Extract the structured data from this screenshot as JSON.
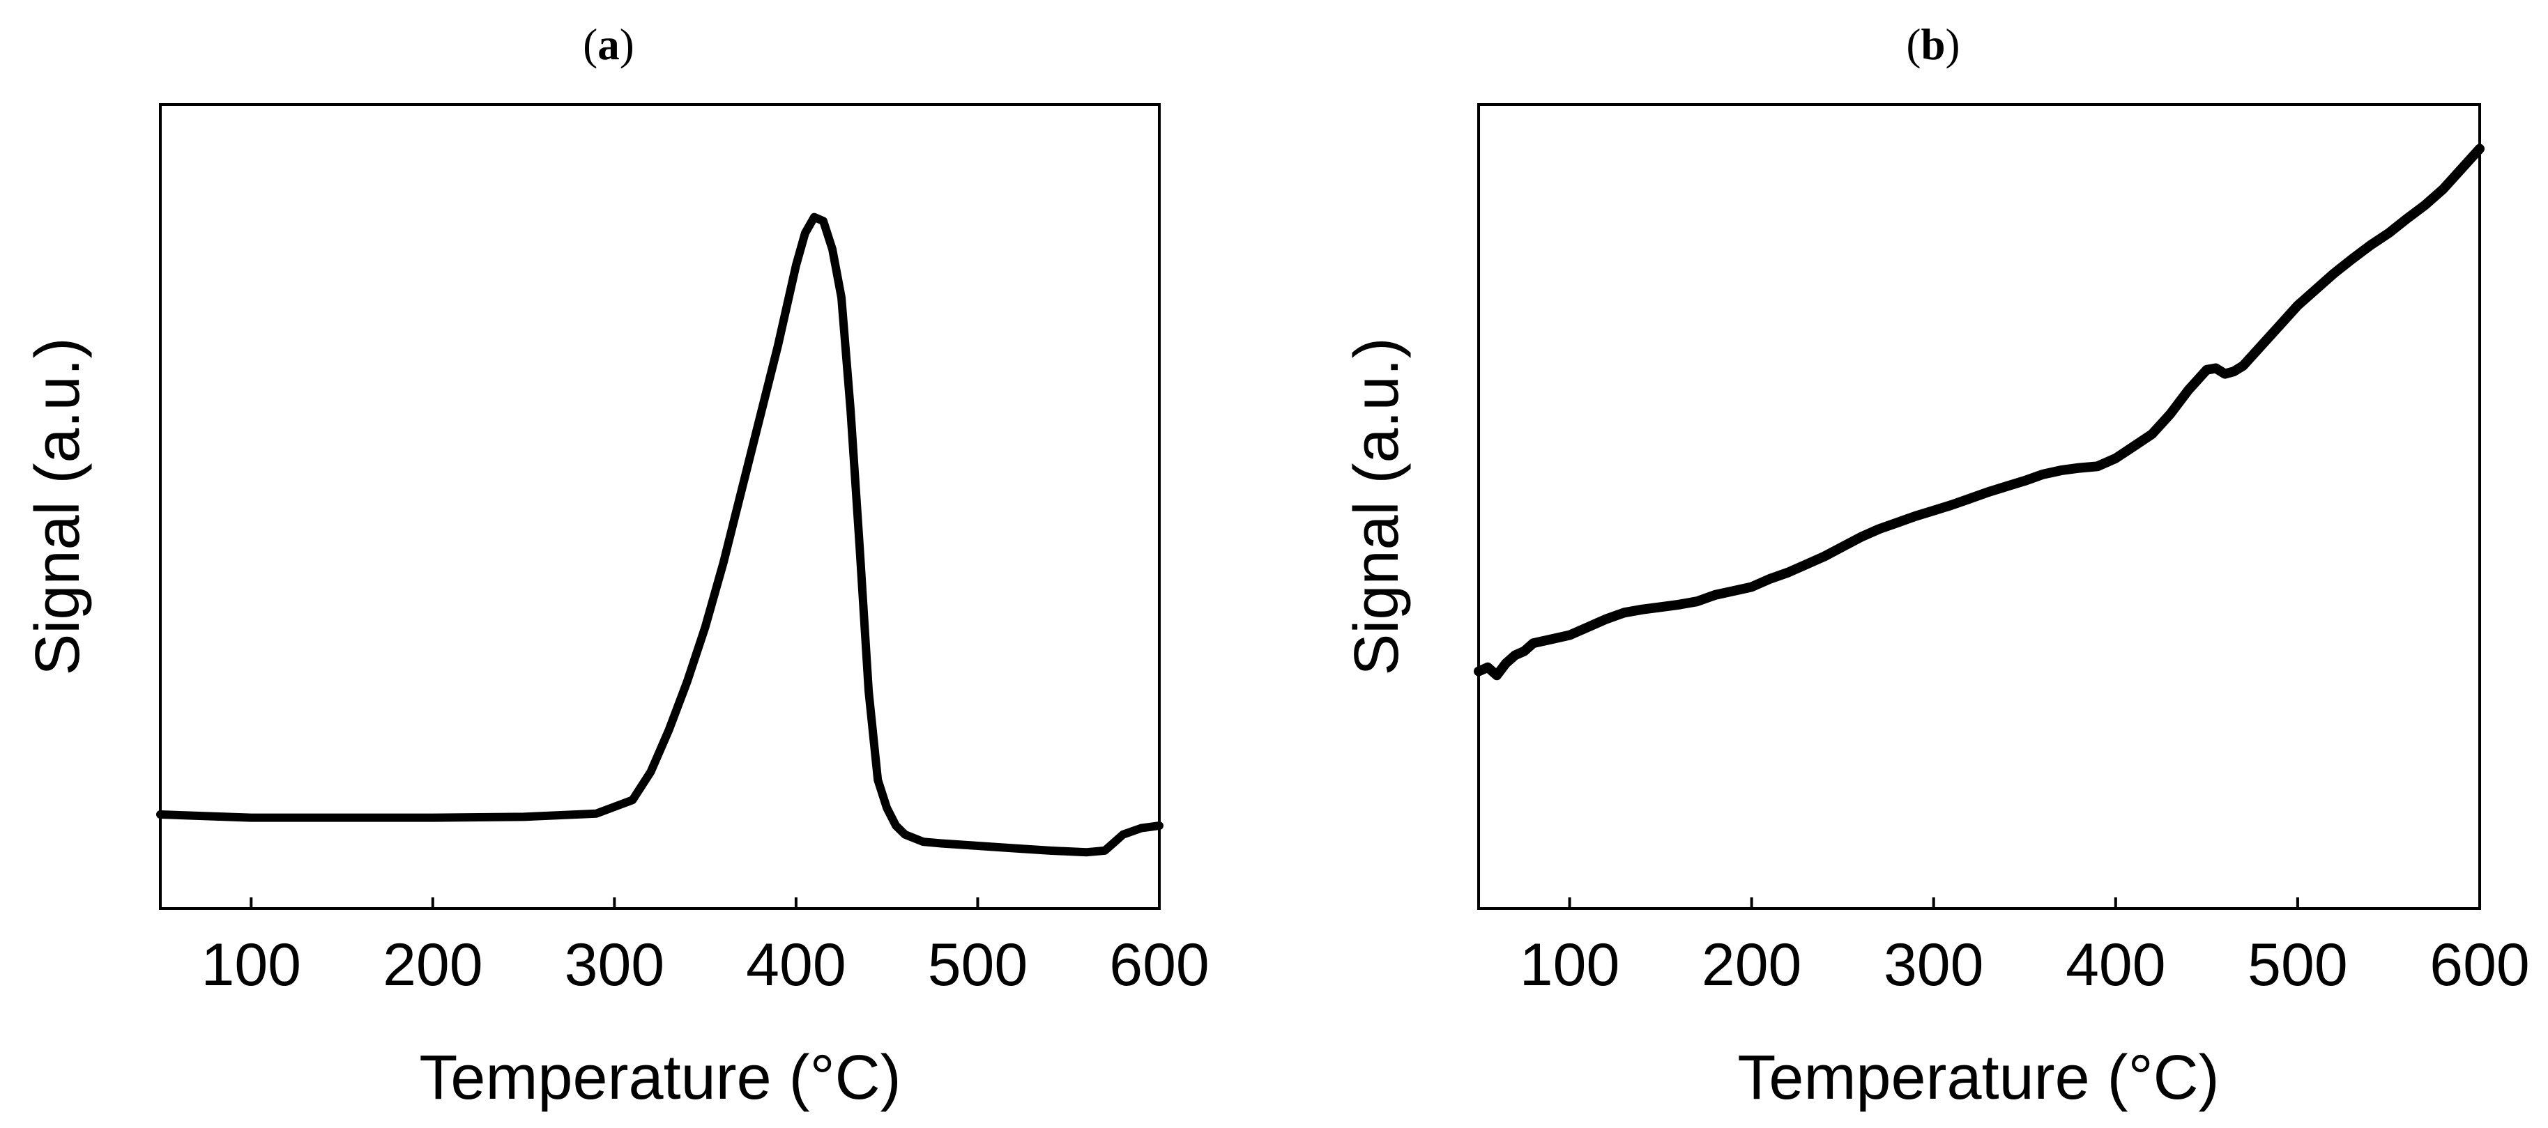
{
  "chart_data": [
    {
      "type": "line",
      "panel_label": "a",
      "title": "",
      "xlabel": "Temperature (°C)",
      "ylabel": "Signal (a.u.)",
      "xlim": [
        50,
        600
      ],
      "ylim": [
        0,
        1
      ],
      "xticks": [
        100,
        200,
        300,
        400,
        500,
        600
      ],
      "yticks_labeled": false,
      "grid": false,
      "legend": "none",
      "color": "#000000",
      "series": [
        {
          "x": [
            50,
            100,
            150,
            200,
            250,
            290,
            310,
            320,
            330,
            340,
            350,
            360,
            370,
            380,
            390,
            400,
            405,
            410,
            415,
            420,
            425,
            430,
            435,
            440,
            445,
            450,
            455,
            460,
            470,
            480,
            500,
            520,
            540,
            560,
            570,
            575,
            580,
            590,
            600
          ],
          "y": [
            0.117,
            0.113,
            0.113,
            0.113,
            0.114,
            0.118,
            0.135,
            0.17,
            0.222,
            0.282,
            0.35,
            0.43,
            0.52,
            0.61,
            0.7,
            0.8,
            0.84,
            0.86,
            0.855,
            0.82,
            0.76,
            0.62,
            0.45,
            0.27,
            0.16,
            0.125,
            0.103,
            0.092,
            0.083,
            0.081,
            0.078,
            0.075,
            0.072,
            0.07,
            0.072,
            0.082,
            0.092,
            0.1,
            0.103
          ]
        }
      ]
    },
    {
      "type": "line",
      "panel_label": "b",
      "title": "",
      "xlabel": "Temperature (°C)",
      "ylabel": "Signal (a.u.)",
      "xlim": [
        50,
        600
      ],
      "ylim": [
        0,
        1
      ],
      "xticks": [
        100,
        200,
        300,
        400,
        500,
        600
      ],
      "yticks_labeled": false,
      "grid": false,
      "legend": "none",
      "color": "#000000",
      "series": [
        {
          "x": [
            50,
            55,
            60,
            65,
            70,
            75,
            80,
            90,
            100,
            110,
            120,
            130,
            140,
            150,
            160,
            170,
            180,
            190,
            200,
            210,
            220,
            230,
            240,
            250,
            260,
            270,
            280,
            290,
            300,
            310,
            320,
            330,
            340,
            350,
            360,
            370,
            380,
            390,
            400,
            410,
            420,
            430,
            440,
            450,
            455,
            460,
            465,
            470,
            480,
            490,
            500,
            510,
            520,
            530,
            540,
            550,
            560,
            570,
            580,
            590,
            600
          ],
          "y": [
            0.295,
            0.3,
            0.29,
            0.305,
            0.315,
            0.32,
            0.33,
            0.335,
            0.34,
            0.35,
            0.36,
            0.368,
            0.372,
            0.375,
            0.378,
            0.382,
            0.39,
            0.395,
            0.4,
            0.41,
            0.418,
            0.428,
            0.438,
            0.45,
            0.462,
            0.472,
            0.48,
            0.488,
            0.495,
            0.502,
            0.51,
            0.518,
            0.525,
            0.532,
            0.54,
            0.545,
            0.548,
            0.55,
            0.56,
            0.575,
            0.59,
            0.615,
            0.645,
            0.67,
            0.672,
            0.665,
            0.668,
            0.675,
            0.7,
            0.725,
            0.75,
            0.77,
            0.79,
            0.808,
            0.825,
            0.84,
            0.858,
            0.875,
            0.895,
            0.92,
            0.945
          ]
        }
      ]
    }
  ]
}
